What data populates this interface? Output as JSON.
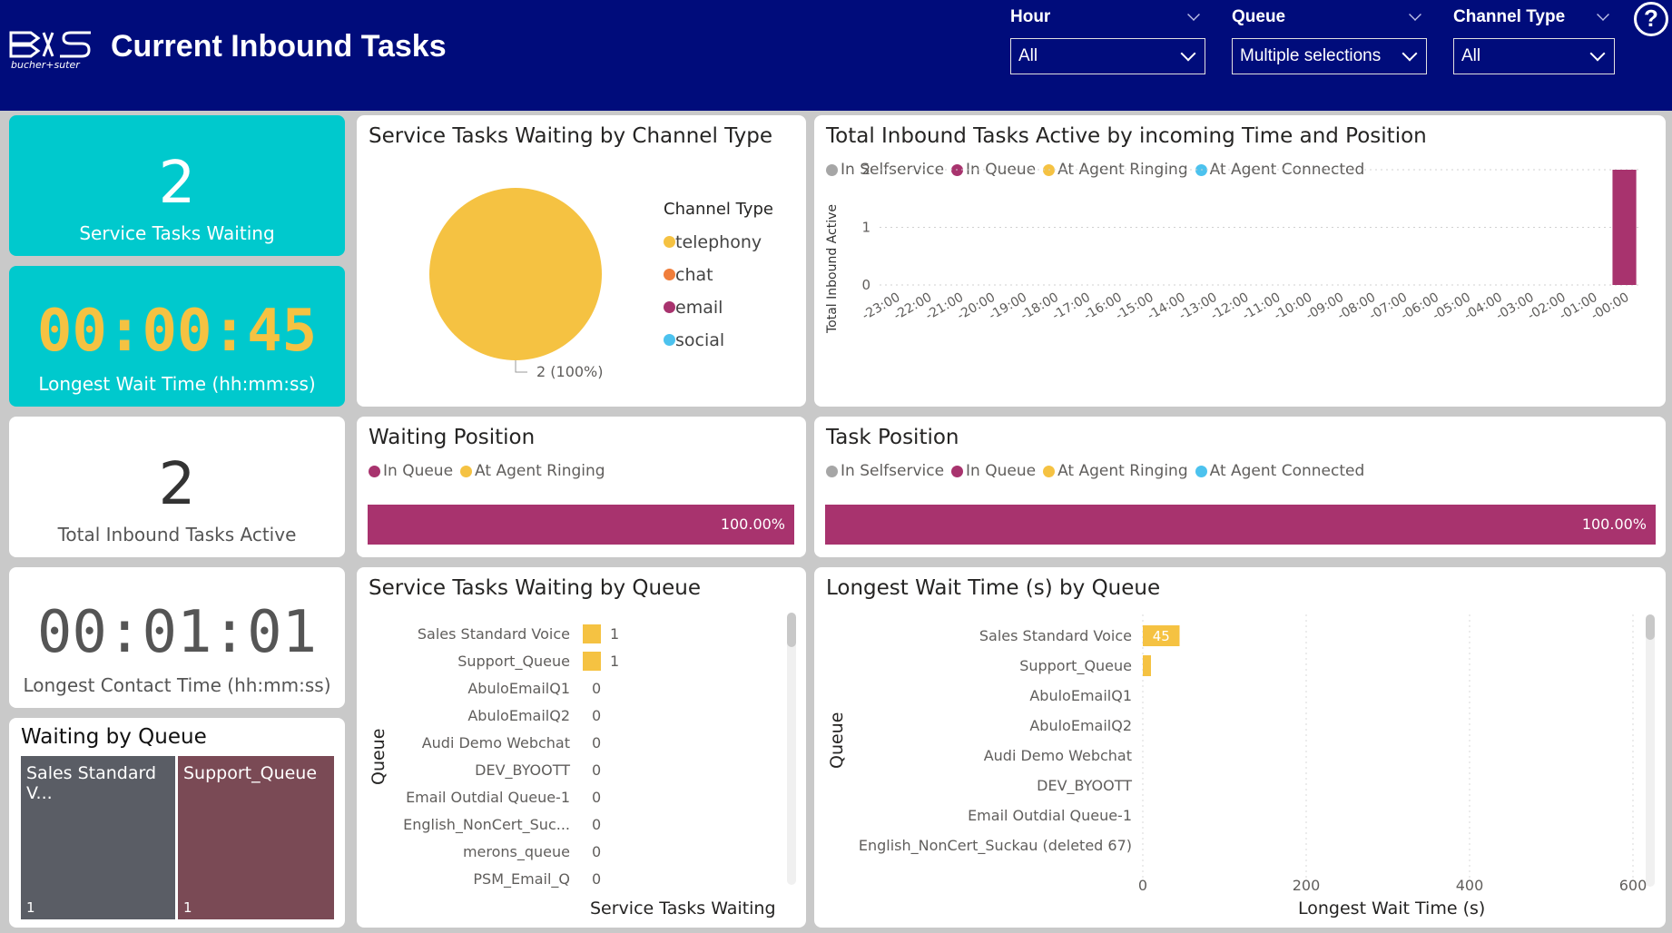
{
  "header": {
    "title": "Current Inbound Tasks",
    "logo_text": "bucher+suter",
    "help_glyph": "?"
  },
  "filters": [
    {
      "label": "Hour",
      "value": "All"
    },
    {
      "label": "Queue",
      "value": "Multiple selections"
    },
    {
      "label": "Channel Type",
      "value": "All"
    }
  ],
  "kpis": {
    "service_tasks_waiting": {
      "value": "2",
      "label": "Service Tasks Waiting"
    },
    "longest_wait_time": {
      "value": "00:00:45",
      "label": "Longest Wait Time (hh:mm:ss)"
    },
    "total_inbound_active": {
      "value": "2",
      "label": "Total Inbound Tasks Active"
    },
    "longest_contact_time": {
      "value": "00:01:01",
      "label": "Longest Contact Time (hh:mm:ss)"
    }
  },
  "colors": {
    "cyan": "#00c9cd",
    "telephony": "#f5c242",
    "chat": "#f07e3b",
    "email": "#a8336e",
    "social": "#4cc2ee",
    "selfservice": "#a6a6a6",
    "header_bg": "#000c7b",
    "tile_sales": "#5a5d65",
    "tile_support": "#7a4a55"
  },
  "pie_chart": {
    "title": "Service Tasks Waiting by Channel Type",
    "legend_title": "Channel Type",
    "chart_data": {
      "type": "pie",
      "slices": [
        {
          "name": "telephony",
          "value": 2,
          "label": "2 (100%)"
        },
        {
          "name": "chat",
          "value": 0
        },
        {
          "name": "email",
          "value": 0
        },
        {
          "name": "social",
          "value": 0
        }
      ]
    }
  },
  "time_chart": {
    "title": "Total Inbound Tasks Active by incoming Time and Position",
    "legend": [
      "In Selfservice",
      "In Queue",
      "At Agent Ringing",
      "At Agent Connected"
    ],
    "chart_data": {
      "type": "bar",
      "ylabel": "Total Inbound Active",
      "ylim": [
        0,
        2
      ],
      "yticks": [
        "2",
        "1",
        "0"
      ],
      "categories": [
        "-23:00",
        "-22:00",
        "-21:00",
        "-20:00",
        "-19:00",
        "-18:00",
        "-17:00",
        "-16:00",
        "-15:00",
        "-14:00",
        "-13:00",
        "-12:00",
        "-11:00",
        "-10:00",
        "-09:00",
        "-08:00",
        "-07:00",
        "-06:00",
        "-05:00",
        "-04:00",
        "-03:00",
        "-02:00",
        "-01:00",
        "-00:00"
      ],
      "series": [
        {
          "name": "In Queue",
          "values": [
            0,
            0,
            0,
            0,
            0,
            0,
            0,
            0,
            0,
            0,
            0,
            0,
            0,
            0,
            0,
            0,
            0,
            0,
            0,
            0,
            0,
            0,
            0,
            2
          ]
        }
      ]
    }
  },
  "waiting_position": {
    "title": "Waiting Position",
    "legend": [
      "In Queue",
      "At Agent Ringing"
    ],
    "bar_label": "100.00%",
    "fill_fraction": 1.0
  },
  "task_position": {
    "title": "Task Position",
    "legend": [
      "In Selfservice",
      "In Queue",
      "At Agent Ringing",
      "At Agent Connected"
    ],
    "bar_label": "100.00%",
    "fill_fraction": 1.0
  },
  "treemap": {
    "title": "Waiting by Queue",
    "tiles": [
      {
        "label": "Sales Standard V...",
        "count": "1"
      },
      {
        "label": "Support_Queue",
        "count": "1"
      }
    ]
  },
  "queue_chart": {
    "title": "Service Tasks Waiting by Queue",
    "ylabel": "Queue",
    "xlabel": "Service Tasks Waiting",
    "chart_data": {
      "type": "bar",
      "categories": [
        "Sales Standard Voice",
        "Support_Queue",
        "AbuloEmailQ1",
        "AbuloEmailQ2",
        "Audi Demo Webchat",
        "DEV_BYOOTT",
        "Email Outdial Queue-1",
        "English_NonCert_Suc...",
        "merons_queue",
        "PSM_Email_Q"
      ],
      "values": [
        1,
        1,
        0,
        0,
        0,
        0,
        0,
        0,
        0,
        0
      ]
    }
  },
  "wait_chart": {
    "title": "Longest Wait Time (s) by Queue",
    "ylabel": "Queue",
    "xlabel": "Longest Wait Time (s)",
    "chart_data": {
      "type": "bar",
      "categories": [
        "Sales Standard Voice",
        "Support_Queue",
        "AbuloEmailQ1",
        "AbuloEmailQ2",
        "Audi Demo Webchat",
        "DEV_BYOOTT",
        "Email Outdial Queue-1",
        "English_NonCert_Suckau (deleted 67)"
      ],
      "values": [
        45,
        10,
        0,
        0,
        0,
        0,
        0,
        0
      ],
      "data_labels": [
        "45",
        "",
        "",
        "",
        "",
        "",
        "",
        ""
      ],
      "xlim": [
        0,
        600
      ],
      "xticks": [
        "0",
        "200",
        "400",
        "600"
      ]
    }
  }
}
